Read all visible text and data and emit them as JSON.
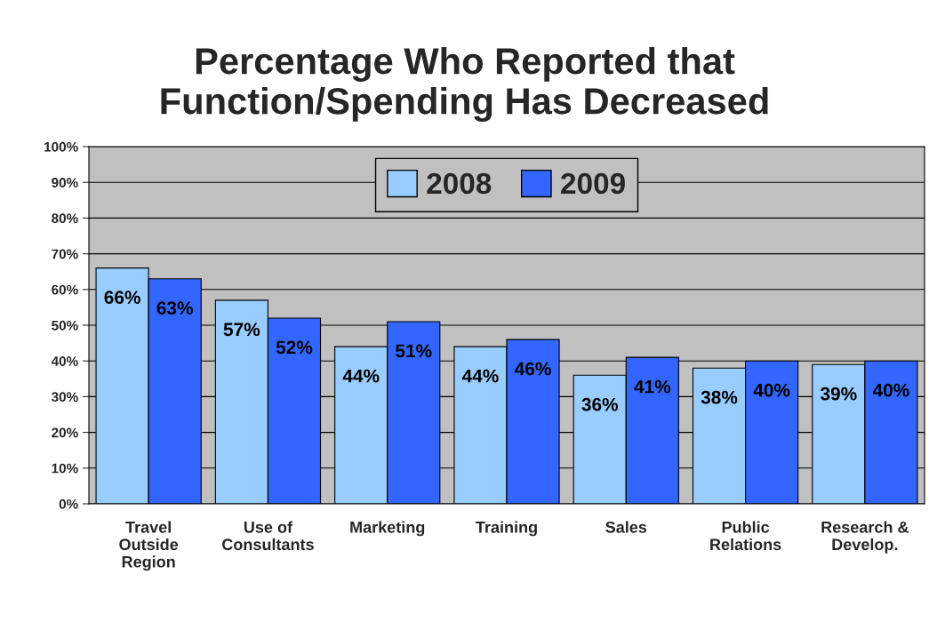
{
  "chart_data": {
    "type": "bar",
    "title": "Percentage Who Reported that\nFunction/Spending Has Decreased",
    "categories": [
      "Travel\nOutside\nRegion",
      "Use of\nConsultants",
      "Marketing",
      "Training",
      "Sales",
      "Public\nRelations",
      "Research &\nDevelop."
    ],
    "series": [
      {
        "name": "2008",
        "color": "#99ccff",
        "values": [
          66,
          57,
          44,
          44,
          36,
          38,
          39
        ],
        "value_labels": [
          "66%",
          "57%",
          "44%",
          "44%",
          "36%",
          "38%",
          "39%"
        ]
      },
      {
        "name": "2009",
        "color": "#3366ff",
        "values": [
          63,
          52,
          51,
          46,
          41,
          40,
          40
        ],
        "value_labels": [
          "63%",
          "52%",
          "51%",
          "46%",
          "41%",
          "40%",
          "40%"
        ]
      }
    ],
    "ylim": [
      0,
      100
    ],
    "yticks": [
      {
        "value": 0,
        "label": "0%"
      },
      {
        "value": 10,
        "label": "10%"
      },
      {
        "value": 20,
        "label": "20%"
      },
      {
        "value": 30,
        "label": "30%"
      },
      {
        "value": 40,
        "label": "40%"
      },
      {
        "value": 50,
        "label": "50%"
      },
      {
        "value": 60,
        "label": "60%"
      },
      {
        "value": 70,
        "label": "70%"
      },
      {
        "value": 80,
        "label": "80%"
      },
      {
        "value": 90,
        "label": "90%"
      },
      {
        "value": 100,
        "label": "100%"
      }
    ],
    "grid": "y",
    "legend": "top"
  }
}
